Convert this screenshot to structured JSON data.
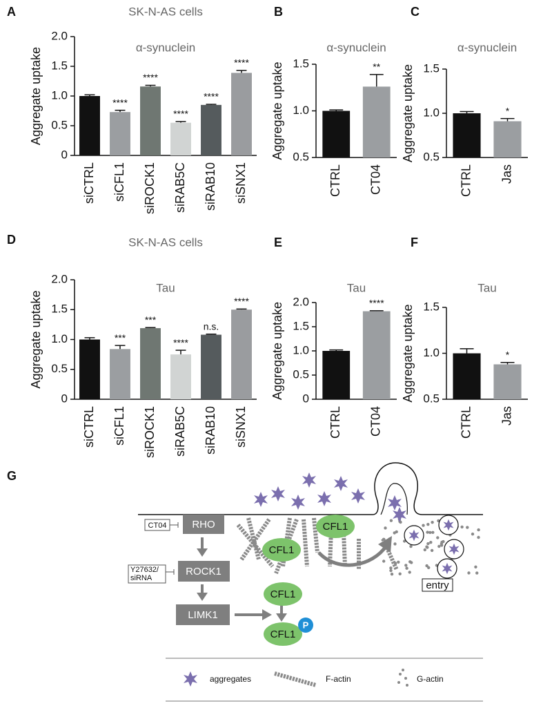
{
  "chart_data": [
    {
      "type": "bar",
      "panel": "A",
      "title": "SK-N-AS cells",
      "subtitle": "α-synuclein",
      "y_label": "Aggregate uptake",
      "categories": [
        "siCTRL",
        "siCFL1",
        "siROCK1",
        "siRAB5C",
        "siRAB10",
        "siSNX1"
      ],
      "values": [
        1.0,
        0.73,
        1.16,
        0.55,
        0.85,
        1.39
      ],
      "errors": [
        0.02,
        0.03,
        0.02,
        0.02,
        0.01,
        0.04
      ],
      "value_labels": [
        null,
        "****",
        "****",
        "****",
        "****",
        "****"
      ],
      "colors": [
        "#111111",
        "#9b9ea1",
        "#6f7772",
        "#d1d4d3",
        "#555b5d",
        "#9a9c9f"
      ],
      "ylim": [
        0,
        2
      ],
      "yticks": [
        0,
        0.5,
        {
          "value": 1,
          "label": "1.0"
        },
        1.5,
        {
          "value": 2,
          "label": "2.0"
        }
      ]
    },
    {
      "type": "bar",
      "panel": "B",
      "subtitle": "α-synuclein",
      "y_label": "Aggregate uptake",
      "categories": [
        "CTRL",
        "CT04"
      ],
      "values": [
        1.0,
        1.26
      ],
      "errors": [
        0.01,
        0.13
      ],
      "value_labels": [
        null,
        "**"
      ],
      "colors": [
        "#111111",
        "#9b9ea1"
      ],
      "ylim": [
        0.5,
        1.5
      ],
      "yticks": [
        0.5,
        {
          "value": 1,
          "label": "1.0"
        },
        1.5
      ]
    },
    {
      "type": "bar",
      "panel": "C",
      "subtitle": "α-synuclein",
      "y_label": "Aggregate uptake",
      "categories": [
        "CTRL",
        "Jas"
      ],
      "values": [
        1.0,
        0.91
      ],
      "errors": [
        0.02,
        0.03
      ],
      "value_labels": [
        null,
        "*"
      ],
      "colors": [
        "#111111",
        "#9b9ea1"
      ],
      "ylim": [
        0.5,
        1.5
      ],
      "yticks": [
        0.5,
        {
          "value": 1,
          "label": "1.0"
        },
        1.5
      ]
    },
    {
      "type": "bar",
      "panel": "D",
      "title": "SK-N-AS cells",
      "subtitle": "Tau",
      "y_label": "Aggregate uptake",
      "categories": [
        "siCTRL",
        "siCFL1",
        "siROCK1",
        "siRAB5C",
        "siRAB10",
        "siSNX1"
      ],
      "values": [
        1.0,
        0.84,
        1.19,
        0.75,
        1.08,
        1.5
      ],
      "errors": [
        0.03,
        0.06,
        0.01,
        0.07,
        0.01,
        0.01
      ],
      "value_labels": [
        null,
        "***",
        "***",
        "****",
        "n.s.",
        "****"
      ],
      "colors": [
        "#111111",
        "#9b9ea1",
        "#6f7772",
        "#d1d4d3",
        "#555b5d",
        "#9a9c9f"
      ],
      "ylim": [
        0,
        2
      ],
      "yticks": [
        0,
        0.5,
        {
          "value": 1,
          "label": "1.0"
        },
        1.5,
        {
          "value": 2,
          "label": "2.0"
        }
      ]
    },
    {
      "type": "bar",
      "panel": "E",
      "subtitle": "Tau",
      "y_label": "Aggregate uptake",
      "categories": [
        "CTRL",
        "CT04"
      ],
      "values": [
        1.0,
        1.82
      ],
      "errors": [
        0.02,
        0.01
      ],
      "value_labels": [
        null,
        "****"
      ],
      "colors": [
        "#111111",
        "#9b9ea1"
      ],
      "ylim": [
        0,
        2
      ],
      "yticks": [
        0,
        0.5,
        {
          "value": 1,
          "label": "1.0"
        },
        1.5,
        {
          "value": 2,
          "label": "2.0"
        }
      ]
    },
    {
      "type": "bar",
      "panel": "F",
      "subtitle": "Tau",
      "y_label": "Aggregate uptake",
      "categories": [
        "CTRL",
        "Jas"
      ],
      "values": [
        1.0,
        0.88
      ],
      "errors": [
        0.05,
        0.02
      ],
      "value_labels": [
        null,
        "*"
      ],
      "colors": [
        "#111111",
        "#9b9ea1"
      ],
      "ylim": [
        0.5,
        1.5
      ],
      "yticks": [
        0.5,
        {
          "value": 1,
          "label": "1.0"
        },
        1.5
      ]
    }
  ],
  "diagram": {
    "panel": "G",
    "pathway": [
      "RHO",
      "ROCK1",
      "LIMK1"
    ],
    "inhibitors": [
      "CT04",
      [
        "Y27632/",
        "siRNA"
      ]
    ],
    "cofilin": [
      "CFL1",
      "CFL1",
      "CFL1",
      "CFL1"
    ],
    "phospho": "P",
    "entry": "entry",
    "legend": [
      "aggregates",
      "F-actin",
      "G-actin"
    ]
  }
}
